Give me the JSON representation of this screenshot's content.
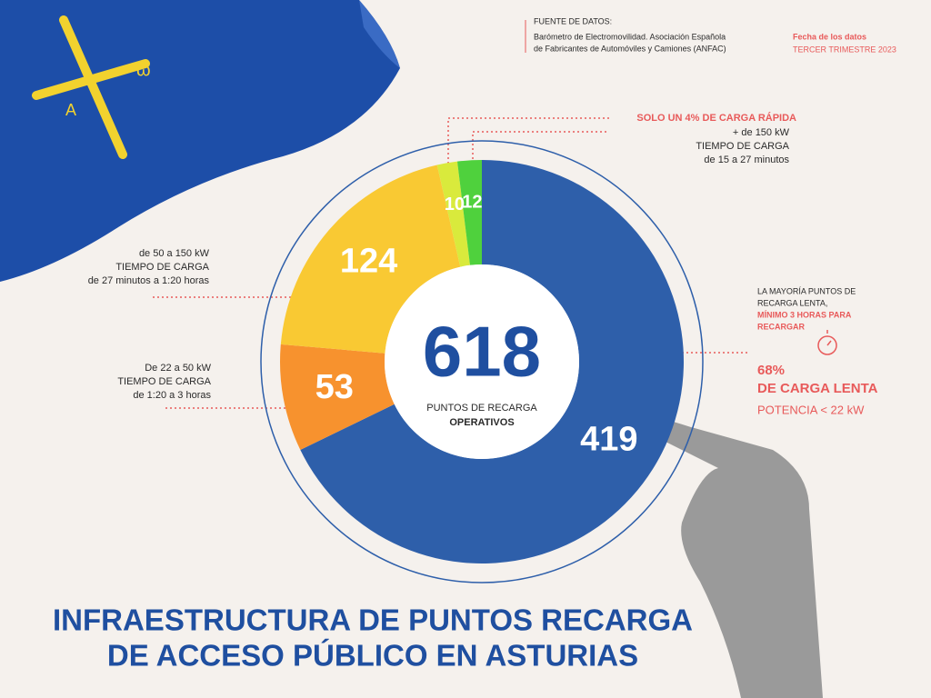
{
  "chart_data": {
    "type": "donut",
    "title_lines": [
      "INFRAESTRUCTURA DE PUNTOS RECARGA",
      "DE ACCESO PÚBLICO EN ASTURIAS"
    ],
    "total": 618,
    "center_label": [
      "PUNTOS DE RECARGA",
      "OPERATIVOS"
    ],
    "slices": [
      {
        "value": 419,
        "color": "#2e5faa"
      },
      {
        "value": 53,
        "color": "#f7922e"
      },
      {
        "value": 124,
        "color": "#f9c933"
      },
      {
        "value": 10,
        "color": "#d9ea3c"
      },
      {
        "value": 12,
        "color": "#4fd13d"
      }
    ],
    "source": {
      "label": "FUENTE DE DATOS:",
      "lines": [
        "Barómetro de Electromovilidad. Asociación Española",
        "de Fabricantes de Automóviles y Camiones (ANFAC)"
      ]
    },
    "date": {
      "label": "Fecha de los datos",
      "value": "TERCER TRIMESTRE 2023"
    },
    "notes": {
      "fast": [
        "SOLO UN 4%  DE CARGA RÁPIDA",
        "+ de 150 kW",
        "TIEMPO DE CARGA",
        "de 15 a 27 minutos"
      ],
      "medium": [
        "de 50 a 150 kW",
        "TIEMPO DE CARGA",
        "de 27 minutos a 1:20 horas"
      ],
      "low": [
        "De 22 a 50 kW",
        "TIEMPO DE CARGA",
        "de 1:20 a 3 horas"
      ],
      "slow_intro": [
        "LA MAYORÍA PUNTOS DE",
        "RECARGA LENTA,",
        "MÍNIMO 3 HORAS PARA",
        "RECARGAR"
      ],
      "slow": [
        "68%",
        "DE CARGA LENTA",
        "POTENCIA < 22 kW"
      ]
    }
  }
}
